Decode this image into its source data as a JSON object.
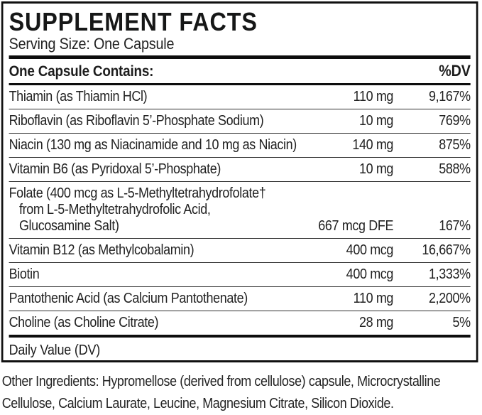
{
  "label": {
    "title": "SUPPLEMENT FACTS",
    "serving_size": "Serving Size: One Capsule",
    "header": {
      "contains": "One Capsule Contains:",
      "dv": "%DV"
    },
    "rows": [
      {
        "name_lines": [
          "Thiamin (as Thiamin HCl)"
        ],
        "amount": "110 mg",
        "dv": "9,167%"
      },
      {
        "name_lines": [
          "Riboflavin (as Riboflavin 5’-Phosphate Sodium)"
        ],
        "amount": "10 mg",
        "dv": "769%"
      },
      {
        "name_lines": [
          "Niacin (130 mg as Niacinamide and 10 mg as Niacin)"
        ],
        "amount": "140 mg",
        "dv": "875%"
      },
      {
        "name_lines": [
          "Vitamin B6 (as Pyridoxal 5’-Phosphate)"
        ],
        "amount": "10 mg",
        "dv": "588%"
      },
      {
        "name_lines": [
          "Folate (400 mcg as L-5-Methyltetrahydrofolate†",
          "from L-5-Methyltetrahydrofolic Acid,",
          "Glucosamine Salt)"
        ],
        "amount": "667 mcg DFE",
        "dv": "167%"
      },
      {
        "name_lines": [
          "Vitamin B12 (as Methylcobalamin)"
        ],
        "amount": "400 mcg",
        "dv": "16,667%"
      },
      {
        "name_lines": [
          "Biotin"
        ],
        "amount": "400 mcg",
        "dv": "1,333%"
      },
      {
        "name_lines": [
          "Pantothenic Acid (as Calcium Pantothenate)"
        ],
        "amount": "110 mg",
        "dv": "2,200%"
      },
      {
        "name_lines": [
          "Choline (as Choline Citrate)"
        ],
        "amount": "28 mg",
        "dv": "5%"
      }
    ],
    "daily_value_note": "Daily Value (DV)",
    "other_ingredients_lines": [
      "Other Ingredients: Hypromellose (derived from cellulose) capsule, Microcrystalline",
      "Cellulose, Calcium Laurate, Leucine, Magnesium Citrate, Silicon Dioxide."
    ],
    "colors": {
      "text": "#1d1d1d",
      "rule": "#303030",
      "bar": "#0d0d0d",
      "border": "#101010",
      "background": "#ffffff"
    }
  }
}
